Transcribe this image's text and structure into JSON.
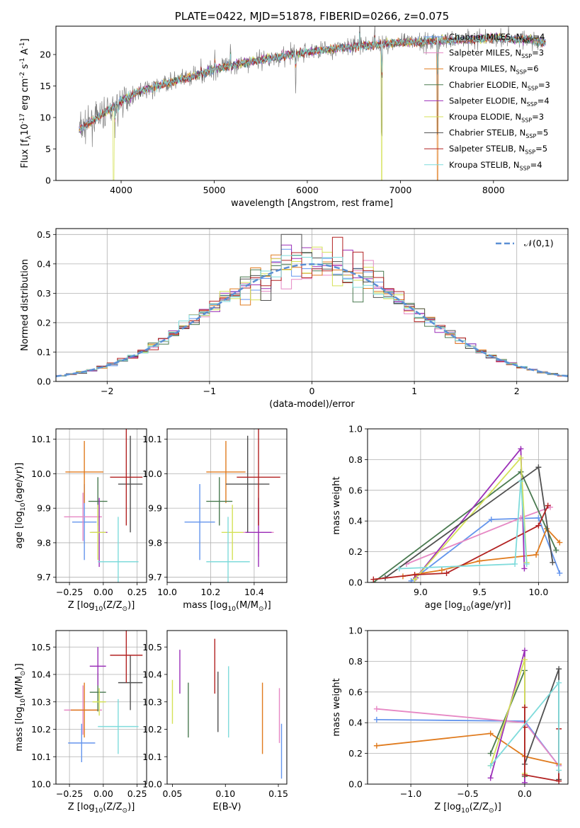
{
  "colors": {
    "cornflower": "#6495ed",
    "orange": "#e07b1e",
    "green": "#4a7a50",
    "purple": "#9b2fb8",
    "lime": "#d4e157",
    "dark": "#505050",
    "red": "#b22222",
    "cyan": "#7fdbdb",
    "pink": "#e688c4",
    "grey": "#808080",
    "normal_dash": "#5b8fd4",
    "grid": "#b0b0b0"
  },
  "chart_data": [
    {
      "id": "spectrum",
      "type": "line",
      "title": "PLATE=0422, MJD=51878, FIBERID=0266, z=0.075",
      "xlabel": "wavelength [Angstrom, rest frame]",
      "ylabel": "Flux [f$_\\lambda$10$^{-17}$ erg cm$^{-2}$ s$^{-1}$ A$^{-1}$]",
      "xlim": [
        3300,
        8800
      ],
      "ylim": [
        0,
        24.5
      ],
      "xticks": [
        "4000",
        "5000",
        "6000",
        "7000",
        "8000"
      ],
      "yticks": [
        "0",
        "5",
        "10",
        "15",
        "20"
      ],
      "grid": false,
      "legend_position": "top-right",
      "continuum": [
        [
          3550,
          8.2
        ],
        [
          3600,
          8.5
        ],
        [
          3700,
          9.5
        ],
        [
          3800,
          10.5
        ],
        [
          3900,
          11.5
        ],
        [
          4000,
          12.6
        ],
        [
          4200,
          14.2
        ],
        [
          4500,
          15.5
        ],
        [
          4800,
          16.6
        ],
        [
          5000,
          17.6
        ],
        [
          5300,
          18.6
        ],
        [
          5600,
          19.4
        ],
        [
          6000,
          20.4
        ],
        [
          6500,
          21.3
        ],
        [
          7000,
          21.9
        ],
        [
          7500,
          22.2
        ],
        [
          8000,
          22.6
        ],
        [
          8400,
          22.4
        ],
        [
          8550,
          21.8
        ]
      ],
      "lines": [
        [
          3933,
          -6.5
        ],
        [
          3968,
          -4.0
        ],
        [
          4340,
          -3.0
        ],
        [
          4861,
          2.0
        ],
        [
          5007,
          3.5
        ],
        [
          5175,
          5.0
        ],
        [
          5875,
          -8.0
        ],
        [
          6563,
          6.0
        ],
        [
          6725,
          4.0
        ],
        [
          6800,
          -21.0
        ],
        [
          7400,
          -22.0
        ]
      ],
      "legend": [
        {
          "label": "Chabrier MILES, N$_{SSP}$=4",
          "color": "#6495ed"
        },
        {
          "label": "Salpeter MILES, N$_{SSP}$=3",
          "color": "#e688c4"
        },
        {
          "label": "Kroupa MILES, N$_{SSP}$=6",
          "color": "#e07b1e"
        },
        {
          "label": "Chabrier ELODIE, N$_{SSP}$=3",
          "color": "#4a7a50"
        },
        {
          "label": "Salpeter ELODIE, N$_{SSP}$=4",
          "color": "#9b2fb8"
        },
        {
          "label": "Kroupa ELODIE, N$_{SSP}$=3",
          "color": "#d4e157"
        },
        {
          "label": "Chabrier STELIB, N$_{SSP}$=5",
          "color": "#505050"
        },
        {
          "label": "Salpeter STELIB, N$_{SSP}$=5",
          "color": "#b22222"
        },
        {
          "label": "Kroupa STELIB, N$_{SSP}$=4",
          "color": "#7fdbdb"
        }
      ]
    },
    {
      "id": "residuals",
      "type": "line",
      "xlabel": "(data-model)/error",
      "ylabel": "Normed distribution",
      "xlim": [
        -2.5,
        2.5
      ],
      "ylim": [
        0,
        0.52
      ],
      "xticks": [
        "−2",
        "−1",
        "0",
        "1",
        "2"
      ],
      "yticks": [
        "0.0",
        "0.1",
        "0.2",
        "0.3",
        "0.4",
        "0.5"
      ],
      "grid": true,
      "legend_position": "top-right",
      "normal_label": "$\\mathcal{N}(0,1)$",
      "bin_width": 0.1
    },
    {
      "id": "age_Z",
      "type": "scatter",
      "xlabel": "Z [log$_{10}$(Z/Z$_\\odot$)]",
      "ylabel": "age  [log$_{10}$(age/yr)]",
      "xlim": [
        -0.35,
        0.32
      ],
      "ylim": [
        9.685,
        10.13
      ],
      "xticks": [
        "−0.25",
        "0.00",
        "0.25"
      ],
      "yticks": [
        "9.7",
        "9.8",
        "9.9",
        "10.0",
        "10.1"
      ],
      "xtick_values": [
        -0.25,
        0,
        0.25
      ],
      "ytick_values": [
        9.7,
        9.8,
        9.9,
        10.0,
        10.1
      ],
      "grid": true,
      "points": [
        {
          "x": -0.14,
          "xerr": 0.09,
          "y": 9.86,
          "yerr": 0.11,
          "color": "#6495ed"
        },
        {
          "x": -0.15,
          "xerr": 0.14,
          "y": 9.875,
          "yerr": 0.07,
          "color": "#e688c4"
        },
        {
          "x": -0.14,
          "xerr": 0.14,
          "y": 10.005,
          "yerr": 0.09,
          "color": "#e07b1e"
        },
        {
          "x": -0.04,
          "xerr": 0.07,
          "y": 9.92,
          "yerr": 0.07,
          "color": "#4a7a50"
        },
        {
          "x": -0.03,
          "xerr": 0.06,
          "y": 9.83,
          "yerr": 0.1,
          "color": "#9b2fb8"
        },
        {
          "x": -0.04,
          "xerr": 0.06,
          "y": 9.83,
          "yerr": 0.08,
          "color": "#d4e157"
        },
        {
          "x": 0.2,
          "xerr": 0.09,
          "y": 9.97,
          "yerr": 0.14,
          "color": "#505050"
        },
        {
          "x": 0.17,
          "xerr": 0.12,
          "y": 9.99,
          "yerr": 0.14,
          "color": "#b22222"
        },
        {
          "x": 0.11,
          "xerr": 0.15,
          "y": 9.745,
          "yerr": 0.13,
          "color": "#7fdbdb"
        }
      ]
    },
    {
      "id": "age_mass",
      "type": "scatter",
      "xlabel": "mass [log$_{10}$(M/M$_\\odot$)]",
      "ylabel": "",
      "xlim": [
        10.0,
        10.55
      ],
      "ylim": [
        9.685,
        10.13
      ],
      "xticks": [
        "10.0",
        "10.2",
        "10.4"
      ],
      "yticks": [
        "9.7",
        "9.8",
        "9.9",
        "10.0",
        "10.1"
      ],
      "xtick_values": [
        10.0,
        10.2,
        10.4
      ],
      "ytick_values": [
        9.7,
        9.8,
        9.9,
        10.0,
        10.1
      ],
      "grid": true,
      "points": [
        {
          "x": 10.15,
          "xerr": 0.07,
          "y": 9.86,
          "yerr": 0.11,
          "color": "#6495ed"
        },
        {
          "x": 10.42,
          "xerr": 0.07,
          "y": 9.83,
          "yerr": 0.07,
          "color": "#e688c4"
        },
        {
          "x": 10.27,
          "xerr": 0.09,
          "y": 10.005,
          "yerr": 0.09,
          "color": "#e07b1e"
        },
        {
          "x": 10.24,
          "xerr": 0.06,
          "y": 9.92,
          "yerr": 0.07,
          "color": "#4a7a50"
        },
        {
          "x": 10.42,
          "xerr": 0.06,
          "y": 9.83,
          "yerr": 0.1,
          "color": "#9b2fb8"
        },
        {
          "x": 10.3,
          "xerr": 0.05,
          "y": 9.83,
          "yerr": 0.08,
          "color": "#d4e157"
        },
        {
          "x": 10.37,
          "xerr": 0.1,
          "y": 9.97,
          "yerr": 0.14,
          "color": "#505050"
        },
        {
          "x": 10.42,
          "xerr": 0.1,
          "y": 9.99,
          "yerr": 0.14,
          "color": "#b22222"
        },
        {
          "x": 10.28,
          "xerr": 0.1,
          "y": 9.745,
          "yerr": 0.13,
          "color": "#7fdbdb"
        }
      ]
    },
    {
      "id": "mass_Z",
      "type": "scatter",
      "xlabel": "Z [log$_{10}$(Z/Z$_\\odot$)]",
      "ylabel": "mass [log$_{10}$(M/M$_\\odot$)]",
      "xlim": [
        -0.35,
        0.32
      ],
      "ylim": [
        10.0,
        10.56
      ],
      "xticks": [
        "−0.25",
        "0.00",
        "0.25"
      ],
      "yticks": [
        "10.0",
        "10.1",
        "10.2",
        "10.3",
        "10.4",
        "10.5"
      ],
      "xtick_values": [
        -0.25,
        0,
        0.25
      ],
      "ytick_values": [
        10.0,
        10.1,
        10.2,
        10.3,
        10.4,
        10.5
      ],
      "grid": true,
      "points": [
        {
          "x": -0.16,
          "xerr": 0.1,
          "y": 10.15,
          "yerr": 0.07,
          "color": "#6495ed"
        },
        {
          "x": -0.15,
          "xerr": 0.14,
          "y": 10.27,
          "yerr": 0.09,
          "color": "#e688c4"
        },
        {
          "x": -0.14,
          "xerr": 0.1,
          "y": 10.27,
          "yerr": 0.1,
          "color": "#e07b1e"
        },
        {
          "x": -0.04,
          "xerr": 0.06,
          "y": 10.335,
          "yerr": 0.07,
          "color": "#4a7a50"
        },
        {
          "x": -0.04,
          "xerr": 0.06,
          "y": 10.43,
          "yerr": 0.07,
          "color": "#9b2fb8"
        },
        {
          "x": -0.03,
          "xerr": 0.05,
          "y": 10.3,
          "yerr": 0.05,
          "color": "#d4e157"
        },
        {
          "x": 0.2,
          "xerr": 0.09,
          "y": 10.37,
          "yerr": 0.1,
          "color": "#505050"
        },
        {
          "x": 0.17,
          "xerr": 0.12,
          "y": 10.47,
          "yerr": 0.1,
          "color": "#b22222"
        },
        {
          "x": 0.11,
          "xerr": 0.15,
          "y": 10.21,
          "yerr": 0.1,
          "color": "#7fdbdb"
        }
      ]
    },
    {
      "id": "mass_EBV",
      "type": "scatter",
      "xlabel": "E(B-V)",
      "ylabel": "",
      "xlim": [
        0.045,
        0.158
      ],
      "ylim": [
        10.0,
        10.56
      ],
      "xticks": [
        "0.05",
        "0.10",
        "0.15"
      ],
      "yticks": [
        "10.0",
        "10.1",
        "10.2",
        "10.3",
        "10.4",
        "10.5"
      ],
      "xtick_values": [
        0.05,
        0.1,
        0.15
      ],
      "ytick_values": [
        10.0,
        10.1,
        10.2,
        10.3,
        10.4,
        10.5
      ],
      "grid": false,
      "points": [
        {
          "x": 0.153,
          "xerr": 0,
          "y": 10.12,
          "yerr": 0.1,
          "color": "#6495ed"
        },
        {
          "x": 0.151,
          "xerr": 0,
          "y": 10.25,
          "yerr": 0.1,
          "color": "#e688c4"
        },
        {
          "x": 0.135,
          "xerr": 0,
          "y": 10.24,
          "yerr": 0.13,
          "color": "#e07b1e"
        },
        {
          "x": 0.065,
          "xerr": 0,
          "y": 10.27,
          "yerr": 0.1,
          "color": "#4a7a50"
        },
        {
          "x": 0.057,
          "xerr": 0,
          "y": 10.41,
          "yerr": 0.08,
          "color": "#9b2fb8"
        },
        {
          "x": 0.05,
          "xerr": 0,
          "y": 10.3,
          "yerr": 0.08,
          "color": "#d4e157"
        },
        {
          "x": 0.093,
          "xerr": 0,
          "y": 10.3,
          "yerr": 0.11,
          "color": "#505050"
        },
        {
          "x": 0.09,
          "xerr": 0,
          "y": 10.43,
          "yerr": 0.1,
          "color": "#b22222"
        },
        {
          "x": 0.103,
          "xerr": 0,
          "y": 10.3,
          "yerr": 0.13,
          "color": "#7fdbdb"
        }
      ]
    },
    {
      "id": "weight_age",
      "type": "line",
      "xlabel": "age  [log$_{10}$(age/yr)]",
      "ylabel": "mass weight",
      "xlim": [
        8.55,
        10.25
      ],
      "ylim": [
        0,
        1.0
      ],
      "xticks": [
        "9.0",
        "9.5",
        "10.0"
      ],
      "yticks": [
        "0.0",
        "0.2",
        "0.4",
        "0.6",
        "0.8",
        "1.0"
      ],
      "xtick_values": [
        9.0,
        9.5,
        10.0
      ],
      "ytick_values": [
        0,
        0.2,
        0.4,
        0.6,
        0.8,
        1.0
      ],
      "grid": true,
      "series": [
        {
          "color": "#6495ed",
          "x": [
            8.92,
            9.6,
            10.0,
            10.18
          ],
          "y": [
            0.01,
            0.41,
            0.42,
            0.06
          ]
        },
        {
          "color": "#e688c4",
          "x": [
            8.88,
            9.85,
            10.1
          ],
          "y": [
            0.12,
            0.42,
            0.49
          ]
        },
        {
          "color": "#e07b1e",
          "x": [
            8.85,
            9.18,
            9.5,
            9.98,
            10.07,
            10.18
          ],
          "y": [
            0.04,
            0.08,
            0.14,
            0.18,
            0.35,
            0.26
          ]
        },
        {
          "color": "#4a7a50",
          "x": [
            8.6,
            9.85,
            10.15
          ],
          "y": [
            0.0,
            0.72,
            0.21
          ]
        },
        {
          "color": "#9b2fb8",
          "x": [
            8.96,
            9.85,
            9.88
          ],
          "y": [
            0.03,
            0.87,
            0.09
          ]
        },
        {
          "color": "#d4e157",
          "x": [
            8.95,
            9.85,
            9.9
          ],
          "y": [
            0.02,
            0.81,
            0.13
          ]
        },
        {
          "color": "#505050",
          "x": [
            8.7,
            10.0,
            10.12
          ],
          "y": [
            0.03,
            0.75,
            0.13
          ]
        },
        {
          "color": "#b22222",
          "x": [
            8.6,
            8.95,
            9.22,
            10.0,
            10.08
          ],
          "y": [
            0.02,
            0.05,
            0.06,
            0.37,
            0.5
          ]
        },
        {
          "color": "#7fdbdb",
          "x": [
            8.82,
            9.8,
            9.85,
            9.9
          ],
          "y": [
            0.09,
            0.12,
            0.66,
            0.12
          ]
        }
      ]
    },
    {
      "id": "weight_Z",
      "type": "line",
      "xlabel": "Z [log$_{10}$(Z/Z$_\\odot$)]",
      "ylabel": "mass weight",
      "xlim": [
        -1.38,
        0.38
      ],
      "ylim": [
        0,
        1.0
      ],
      "xticks": [
        "−1.0",
        "−0.5",
        "0.0"
      ],
      "yticks": [
        "0.0",
        "0.2",
        "0.4",
        "0.6",
        "0.8",
        "1.0"
      ],
      "xtick_values": [
        -1.0,
        -0.5,
        0.0
      ],
      "ytick_values": [
        0,
        0.2,
        0.4,
        0.6,
        0.8,
        1.0
      ],
      "grid": true,
      "series": [
        {
          "color": "#6495ed",
          "x": [
            -1.3,
            0.0,
            0.3
          ],
          "y": [
            0.42,
            0.41,
            0.12
          ]
        },
        {
          "color": "#e688c4",
          "x": [
            -1.3,
            0.0,
            0.3
          ],
          "y": [
            0.49,
            0.4,
            0.12
          ]
        },
        {
          "color": "#e07b1e",
          "x": [
            -1.3,
            -0.3,
            0.0,
            0.3
          ],
          "y": [
            0.25,
            0.33,
            0.18,
            0.13
          ]
        },
        {
          "color": "#4a7a50",
          "x": [
            -0.3,
            0.0,
            0.0
          ],
          "y": [
            0.2,
            0.74,
            0.05
          ]
        },
        {
          "color": "#9b2fb8",
          "x": [
            -0.3,
            0.0,
            0.0
          ],
          "y": [
            0.04,
            0.87,
            0.01
          ]
        },
        {
          "color": "#d4e157",
          "x": [
            -0.3,
            0.0,
            0.0
          ],
          "y": [
            0.12,
            0.81,
            0.07
          ]
        },
        {
          "color": "#505050",
          "x": [
            0.0,
            0.3,
            0.3
          ],
          "y": [
            0.13,
            0.75,
            0.03
          ]
        },
        {
          "color": "#b22222",
          "x": [
            0.0,
            0.0,
            0.0,
            0.3,
            0.3
          ],
          "y": [
            0.5,
            0.37,
            0.06,
            0.02,
            0.36
          ]
        },
        {
          "color": "#7fdbdb",
          "x": [
            -0.3,
            0.3,
            0.3
          ],
          "y": [
            0.12,
            0.66,
            0.09
          ]
        }
      ]
    }
  ]
}
